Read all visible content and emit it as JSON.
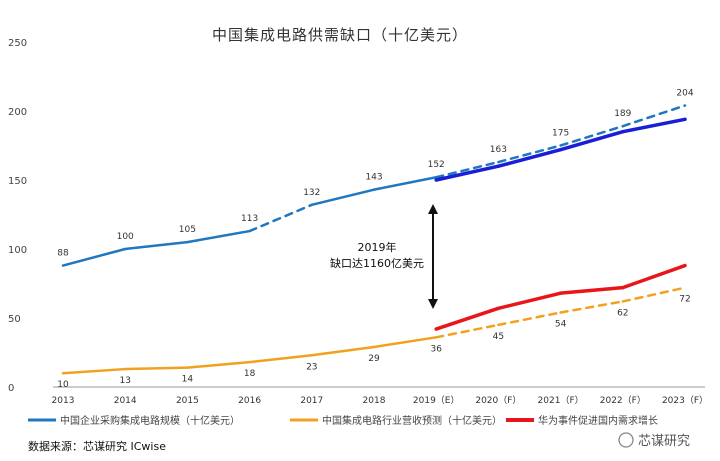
{
  "chart_data": {
    "type": "line",
    "title": "中国集成电路供需缺口（十亿美元）",
    "x": [
      "2013",
      "2014",
      "2015",
      "2016",
      "2017",
      "2018",
      "2019（E）",
      "2020（F）",
      "2021（F）",
      "2022（F）",
      "2023（F）"
    ],
    "ylim": [
      0,
      250
    ],
    "yticks": [
      0,
      50,
      100,
      150,
      200,
      250
    ],
    "grid": false,
    "legend_position": "bottom",
    "series": [
      {
        "name": "中国企业采购集成电路规模（十亿美元）",
        "color": "#1f77c0",
        "values": [
          88,
          100,
          105,
          113,
          132,
          143,
          152,
          163,
          175,
          189,
          204
        ],
        "labels": [
          "88",
          "100",
          "105",
          "113",
          "132",
          "143",
          "152",
          "163",
          "175",
          "189",
          "204"
        ],
        "dashed_segments": [
          3,
          6,
          7,
          8,
          9
        ]
      },
      {
        "name": "中国集成电路行业营收预测（十亿美元）",
        "color": "#f2a11f",
        "values": [
          10,
          13,
          14,
          18,
          23,
          29,
          36,
          45,
          54,
          62,
          72
        ],
        "labels": [
          "10",
          "13",
          "14",
          "18",
          "23",
          "29",
          "36",
          "45",
          "54",
          "62",
          "72"
        ],
        "dashed_segments": [
          6,
          7,
          8,
          9
        ]
      },
      {
        "name": "华为事件促进国内需求增长",
        "color": "#e8161b",
        "values": [
          null,
          null,
          null,
          null,
          null,
          null,
          42,
          57,
          68,
          72,
          88
        ]
      },
      {
        "name": "",
        "color": "#1a1fd6",
        "values": [
          null,
          null,
          null,
          null,
          null,
          null,
          150,
          160,
          172,
          185,
          194
        ]
      }
    ],
    "annotation": {
      "lines": [
        "2019年",
        "缺口达1160亿美元"
      ]
    }
  },
  "footer": {
    "source": "数据来源：芯谋研究 ICwise",
    "watermark": "芯谋研究"
  },
  "colors": {
    "background": "#ffffff",
    "axis": "#9a9a9a",
    "arrow": "#111111"
  }
}
